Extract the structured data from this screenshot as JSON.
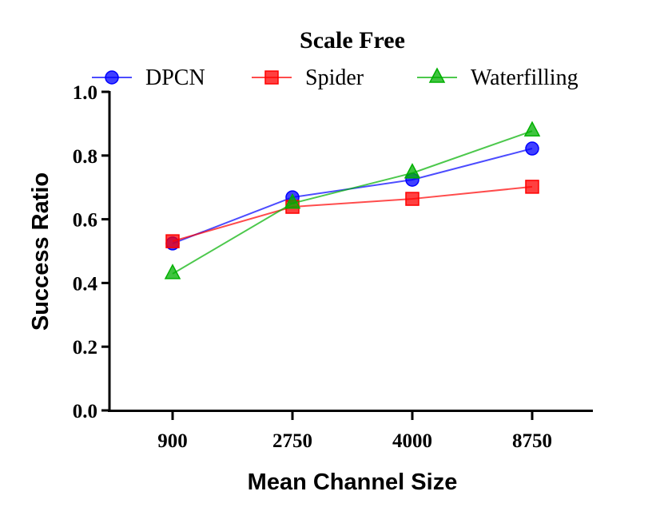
{
  "chart_data": {
    "type": "line",
    "title": "Scale Free",
    "xlabel": "Mean Channel Size",
    "ylabel": "Success Ratio",
    "categories": [
      "900",
      "2750",
      "4000",
      "8750"
    ],
    "ylim": [
      0,
      1.0
    ],
    "yticks": [
      "0.0",
      "0.2",
      "0.4",
      "0.6",
      "0.8",
      "1.0"
    ],
    "grid": false,
    "legend_position": "top",
    "series": [
      {
        "name": "DPCN",
        "color": "#0000ff",
        "marker": "circle",
        "values": [
          0.524,
          0.669,
          0.724,
          0.822
        ]
      },
      {
        "name": "Spider",
        "color": "#ff0000",
        "marker": "square",
        "values": [
          0.531,
          0.639,
          0.664,
          0.702
        ]
      },
      {
        "name": "Waterfilling",
        "color": "#00b000",
        "marker": "triangle",
        "values": [
          0.429,
          0.65,
          0.745,
          0.877
        ]
      }
    ]
  }
}
